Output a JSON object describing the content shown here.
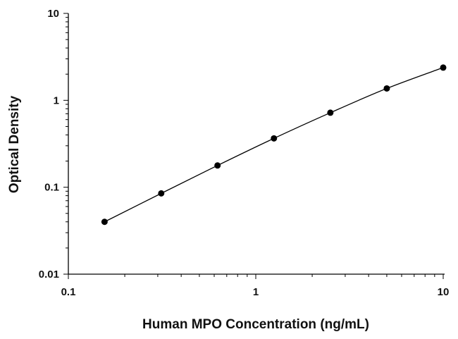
{
  "chart_data": {
    "type": "scatter",
    "title": "",
    "xlabel": "Human MPO Concentration (ng/mL)",
    "ylabel": "Optical Density",
    "x_scale": "log",
    "y_scale": "log",
    "xlim": [
      0.1,
      10
    ],
    "ylim": [
      0.01,
      10
    ],
    "x_ticks": [
      {
        "value": 0.1,
        "label": "0.1"
      },
      {
        "value": 1,
        "label": "1"
      },
      {
        "value": 10,
        "label": "10"
      }
    ],
    "y_ticks": [
      {
        "value": 0.01,
        "label": "0.01"
      },
      {
        "value": 0.1,
        "label": "0.1"
      },
      {
        "value": 1,
        "label": "1"
      },
      {
        "value": 10,
        "label": "10"
      }
    ],
    "grid": false,
    "series": [
      {
        "x": [
          0.156,
          0.313,
          0.625,
          1.25,
          2.5,
          5,
          10
        ],
        "y": [
          0.04,
          0.085,
          0.178,
          0.365,
          0.72,
          1.37,
          2.38
        ],
        "marker": "circle",
        "marker_color": "#000000",
        "fit_line": true,
        "line_color": "#000000"
      }
    ]
  }
}
